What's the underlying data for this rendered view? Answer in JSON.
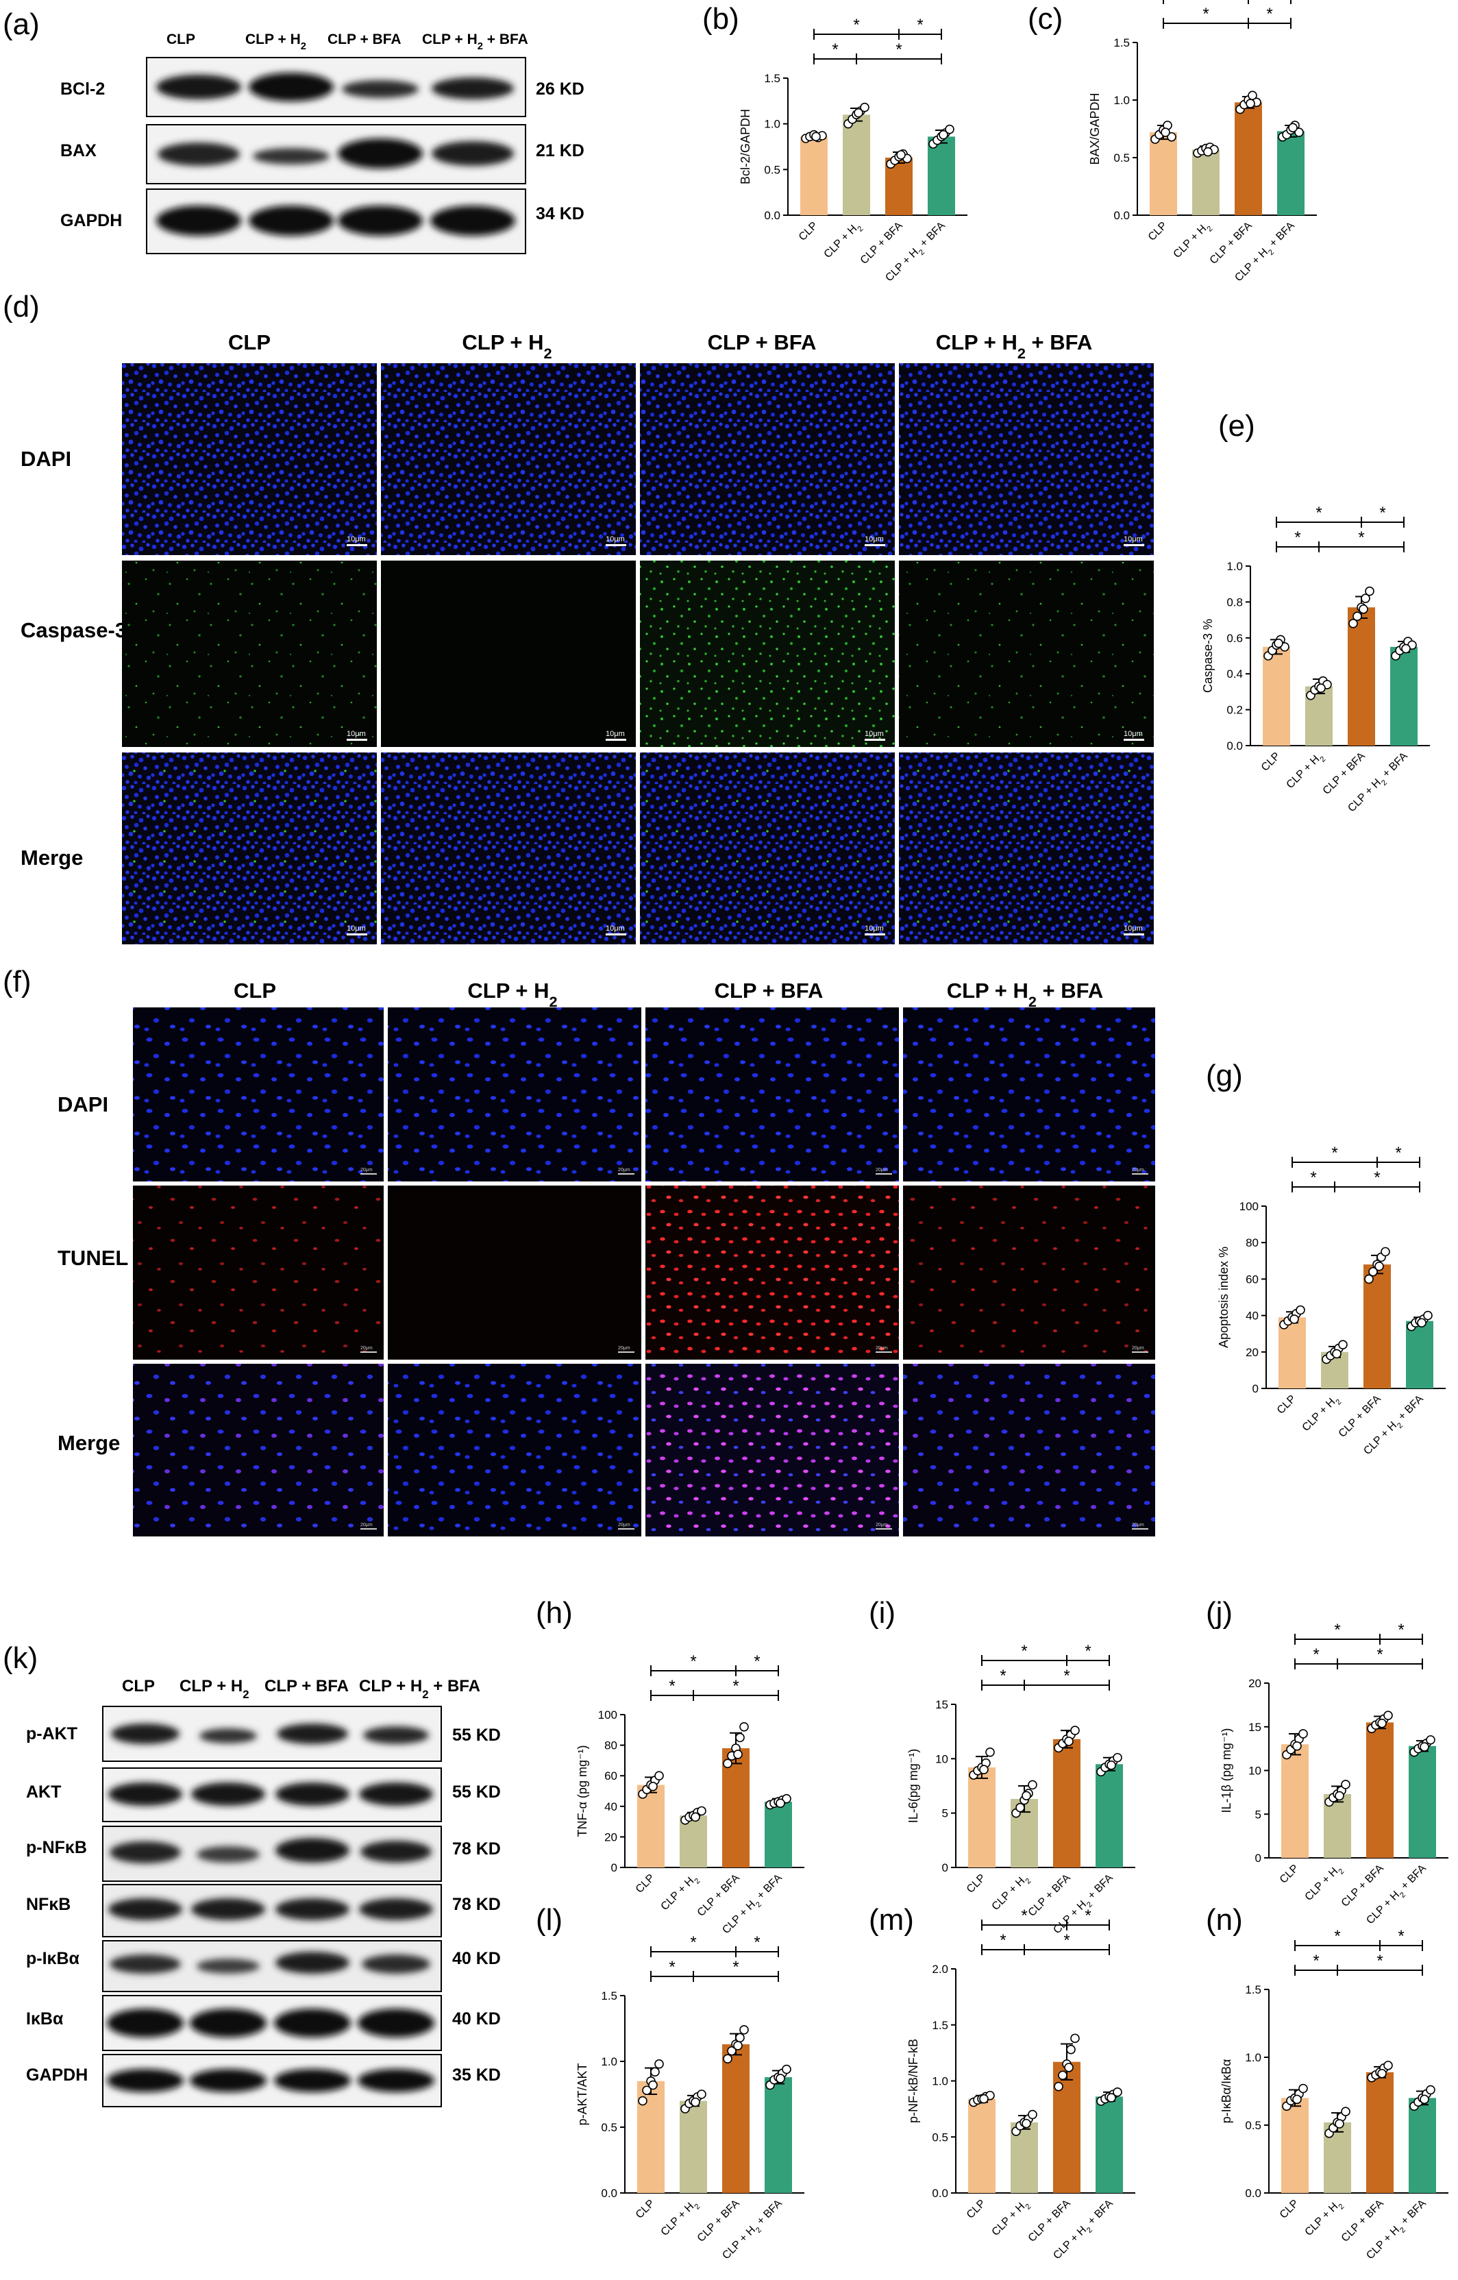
{
  "colors": {
    "bar_colors": [
      "#F4BE89",
      "#C3C295",
      "#C76A1E",
      "#33A079"
    ],
    "microscopy_dapi": "#1a2bd6",
    "microscopy_caspase": "#22c022",
    "microscopy_tunel": "#e02020",
    "microscopy_merge_tunel": "#c040e0",
    "blot_band": "#151515"
  },
  "groups": [
    "CLP",
    "CLP + H2",
    "CLP + BFA",
    "CLP + H2 + BFA"
  ],
  "panel_a": {
    "letter": "(a)",
    "lanes": [
      "CLP",
      "CLP + H2",
      "CLP + BFA",
      "CLP + H2 + BFA"
    ],
    "rows": [
      {
        "label": "BCl-2",
        "kd": "26 KD"
      },
      {
        "label": "BAX",
        "kd": "21 KD"
      },
      {
        "label": "GAPDH",
        "kd": "34 KD"
      }
    ]
  },
  "panel_d": {
    "letter": "(d)",
    "columns": [
      "CLP",
      "CLP + H2",
      "CLP + BFA",
      "CLP + H2 + BFA"
    ],
    "rows": [
      "DAPI",
      "Caspase-3",
      "Merge"
    ],
    "scale_bar": "10μm"
  },
  "panel_f": {
    "letter": "(f)",
    "columns": [
      "CLP",
      "CLP + H2",
      "CLP + BFA",
      "CLP + H2 + BFA"
    ],
    "rows": [
      "DAPI",
      "TUNEL",
      "Merge"
    ],
    "scale_bar": "20μm"
  },
  "panel_k": {
    "letter": "(k)",
    "lanes": [
      "CLP",
      "CLP + H2",
      "CLP + BFA",
      "CLP + H2 + BFA"
    ],
    "rows": [
      {
        "label": "p-AKT",
        "kd": "55 KD"
      },
      {
        "label": "AKT",
        "kd": "55 KD"
      },
      {
        "label": "p-NFκB",
        "kd": "78 KD"
      },
      {
        "label": "NFκB",
        "kd": "78 KD"
      },
      {
        "label": "p-IκBα",
        "kd": "40 KD"
      },
      {
        "label": "IκBα",
        "kd": "40 KD"
      },
      {
        "label": "GAPDH",
        "kd": "35 KD"
      }
    ]
  },
  "chart_data": [
    {
      "id": "b",
      "letter": "(b)",
      "type": "bar",
      "ylabel": "Bcl-2/GAPDH",
      "ylim": [
        0,
        1.5
      ],
      "yticks": [
        "0.0",
        "0.5",
        "1.0",
        "1.5"
      ],
      "categories": [
        "CLP",
        "CLP + H2",
        "CLP + BFA",
        "CLP + H2 + BFA"
      ],
      "values": [
        0.86,
        1.1,
        0.63,
        0.86
      ],
      "errors": [
        0.03,
        0.07,
        0.06,
        0.07
      ],
      "points": [
        [
          0.84,
          0.86,
          0.88,
          0.85,
          0.87,
          0.86
        ],
        [
          1.0,
          1.05,
          1.1,
          1.14,
          1.18,
          1.12
        ],
        [
          0.56,
          0.6,
          0.64,
          0.67,
          0.62,
          0.66
        ],
        [
          0.78,
          0.82,
          0.86,
          0.9,
          0.94,
          0.88
        ]
      ],
      "significance": [
        {
          "from": 0,
          "to": 2,
          "level": 2,
          "label": "*"
        },
        {
          "from": 2,
          "to": 3,
          "level": 2,
          "label": "*"
        },
        {
          "from": 0,
          "to": 1,
          "level": 1,
          "label": "*"
        },
        {
          "from": 1,
          "to": 3,
          "level": 1,
          "label": "*"
        }
      ]
    },
    {
      "id": "c",
      "letter": "(c)",
      "type": "bar",
      "ylabel": "BAX/GAPDH",
      "ylim": [
        0,
        1.5
      ],
      "yticks": [
        "0.0",
        "0.5",
        "1.0",
        "1.5"
      ],
      "categories": [
        "CLP",
        "CLP + H2",
        "CLP + BFA",
        "CLP + H2 + BFA"
      ],
      "values": [
        0.72,
        0.57,
        0.98,
        0.73
      ],
      "errors": [
        0.06,
        0.03,
        0.05,
        0.05
      ],
      "points": [
        [
          0.66,
          0.7,
          0.74,
          0.78,
          0.68,
          0.72
        ],
        [
          0.54,
          0.56,
          0.58,
          0.59,
          0.57,
          0.55
        ],
        [
          0.92,
          0.96,
          1.0,
          1.04,
          0.98,
          0.97
        ],
        [
          0.68,
          0.7,
          0.74,
          0.78,
          0.72,
          0.76
        ]
      ],
      "significance": [
        {
          "from": 0,
          "to": 2,
          "level": 2,
          "label": "*"
        },
        {
          "from": 2,
          "to": 3,
          "level": 2,
          "label": "*"
        },
        {
          "from": 0,
          "to": 2,
          "level": 1,
          "label": "*"
        },
        {
          "from": 2,
          "to": 3,
          "level": 1,
          "label": "*"
        }
      ]
    },
    {
      "id": "e",
      "letter": "(e)",
      "type": "bar",
      "ylabel": "Caspase-3 %",
      "ylim": [
        0,
        1.0
      ],
      "yticks": [
        "0.0",
        "0.2",
        "0.4",
        "0.6",
        "0.8",
        "1.0"
      ],
      "categories": [
        "CLP",
        "CLP + H2",
        "CLP + BFA",
        "CLP + H2 + BFA"
      ],
      "values": [
        0.55,
        0.33,
        0.77,
        0.55
      ],
      "errors": [
        0.04,
        0.04,
        0.06,
        0.03
      ],
      "points": [
        [
          0.5,
          0.53,
          0.56,
          0.59,
          0.55,
          0.57
        ],
        [
          0.28,
          0.31,
          0.33,
          0.36,
          0.34,
          0.32
        ],
        [
          0.68,
          0.72,
          0.77,
          0.82,
          0.86,
          0.76
        ],
        [
          0.5,
          0.53,
          0.55,
          0.58,
          0.56,
          0.54
        ]
      ],
      "significance": [
        {
          "from": 0,
          "to": 2,
          "level": 2,
          "label": "*"
        },
        {
          "from": 2,
          "to": 3,
          "level": 2,
          "label": "*"
        },
        {
          "from": 0,
          "to": 1,
          "level": 1,
          "label": "*"
        },
        {
          "from": 1,
          "to": 3,
          "level": 1,
          "label": "*"
        }
      ]
    },
    {
      "id": "g",
      "letter": "(g)",
      "type": "bar",
      "ylabel": "Apoptosis index %",
      "ylim": [
        0,
        100
      ],
      "yticks": [
        "0",
        "20",
        "40",
        "60",
        "80",
        "100"
      ],
      "categories": [
        "CLP",
        "CLP + H2",
        "CLP + BFA",
        "CLP + H2 + BFA"
      ],
      "values": [
        39,
        20,
        68,
        37
      ],
      "errors": [
        3,
        3,
        5,
        2
      ],
      "points": [
        [
          35,
          37,
          39,
          41,
          43,
          38
        ],
        [
          16,
          18,
          20,
          22,
          24,
          19
        ],
        [
          60,
          64,
          68,
          72,
          75,
          67
        ],
        [
          34,
          36,
          37,
          38,
          40,
          36
        ]
      ],
      "significance": [
        {
          "from": 0,
          "to": 2,
          "level": 2,
          "label": "*"
        },
        {
          "from": 2,
          "to": 3,
          "level": 2,
          "label": "*"
        },
        {
          "from": 0,
          "to": 1,
          "level": 1,
          "label": "*"
        },
        {
          "from": 1,
          "to": 3,
          "level": 1,
          "label": "*"
        }
      ]
    },
    {
      "id": "h",
      "letter": "(h)",
      "type": "bar",
      "ylabel": "TNF-α (pg mg⁻¹)",
      "ylim": [
        0,
        100
      ],
      "yticks": [
        "0",
        "20",
        "40",
        "60",
        "80",
        "100"
      ],
      "categories": [
        "CLP",
        "CLP + H2",
        "CLP + BFA",
        "CLP + H2 + BFA"
      ],
      "values": [
        54,
        34,
        78,
        43
      ],
      "errors": [
        5,
        2,
        10,
        2
      ],
      "points": [
        [
          48,
          51,
          54,
          57,
          60,
          53
        ],
        [
          31,
          33,
          34,
          36,
          37,
          33
        ],
        [
          68,
          73,
          78,
          85,
          92,
          74
        ],
        [
          41,
          42,
          43,
          44,
          45,
          42
        ]
      ],
      "significance": [
        {
          "from": 0,
          "to": 2,
          "level": 2,
          "label": "*"
        },
        {
          "from": 2,
          "to": 3,
          "level": 2,
          "label": "*"
        },
        {
          "from": 0,
          "to": 1,
          "level": 1,
          "label": "*"
        },
        {
          "from": 1,
          "to": 3,
          "level": 1,
          "label": "*"
        }
      ]
    },
    {
      "id": "i",
      "letter": "(i)",
      "type": "bar",
      "ylabel": "IL-6(pg mg⁻¹)",
      "ylim": [
        0,
        15
      ],
      "yticks": [
        "0",
        "5",
        "10",
        "15"
      ],
      "categories": [
        "CLP",
        "CLP + H2",
        "CLP + BFA",
        "CLP + H2 + BFA"
      ],
      "values": [
        9.2,
        6.3,
        11.8,
        9.5
      ],
      "errors": [
        1.0,
        1.2,
        0.8,
        0.6
      ],
      "points": [
        [
          8.5,
          8.9,
          9.2,
          9.6,
          10.6,
          9.0
        ],
        [
          5.0,
          5.5,
          6.2,
          6.8,
          7.6,
          6.6
        ],
        [
          11.0,
          11.4,
          11.8,
          12.2,
          12.6,
          11.6
        ],
        [
          8.8,
          9.2,
          9.5,
          9.8,
          10.1,
          9.4
        ]
      ],
      "significance": [
        {
          "from": 0,
          "to": 2,
          "level": 2,
          "label": "*"
        },
        {
          "from": 2,
          "to": 3,
          "level": 2,
          "label": "*"
        },
        {
          "from": 0,
          "to": 1,
          "level": 1,
          "label": "*"
        },
        {
          "from": 1,
          "to": 3,
          "level": 1,
          "label": "*"
        }
      ]
    },
    {
      "id": "j",
      "letter": "(j)",
      "type": "bar",
      "ylabel": "IL-1β (pg mg⁻¹)",
      "ylim": [
        0,
        20
      ],
      "yticks": [
        "0",
        "5",
        "10",
        "15",
        "20"
      ],
      "categories": [
        "CLP",
        "CLP + H2",
        "CLP + BFA",
        "CLP + H2 + BFA"
      ],
      "values": [
        13,
        7.3,
        15.5,
        12.8
      ],
      "errors": [
        1.2,
        0.9,
        0.7,
        0.6
      ],
      "points": [
        [
          11.8,
          12.4,
          13.0,
          13.6,
          14.2,
          12.8
        ],
        [
          6.4,
          6.9,
          7.3,
          7.7,
          8.4,
          7.1
        ],
        [
          14.8,
          15.2,
          15.5,
          15.9,
          16.3,
          15.4
        ],
        [
          12.1,
          12.5,
          12.8,
          13.1,
          13.5,
          12.7
        ]
      ],
      "significance": [
        {
          "from": 0,
          "to": 2,
          "level": 2,
          "label": "*"
        },
        {
          "from": 2,
          "to": 3,
          "level": 2,
          "label": "*"
        },
        {
          "from": 0,
          "to": 1,
          "level": 1,
          "label": "*"
        },
        {
          "from": 1,
          "to": 3,
          "level": 1,
          "label": "*"
        }
      ]
    },
    {
      "id": "l",
      "letter": "(l)",
      "type": "bar",
      "ylabel": "p-AKT/AKT",
      "ylim": [
        0,
        1.5
      ],
      "yticks": [
        "0.0",
        "0.5",
        "1.0",
        "1.5"
      ],
      "categories": [
        "CLP",
        "CLP + H2",
        "CLP + BFA",
        "CLP + H2 + BFA"
      ],
      "values": [
        0.85,
        0.7,
        1.13,
        0.88
      ],
      "errors": [
        0.1,
        0.04,
        0.08,
        0.05
      ],
      "points": [
        [
          0.7,
          0.78,
          0.85,
          0.92,
          0.98,
          0.82
        ],
        [
          0.64,
          0.68,
          0.7,
          0.73,
          0.75,
          0.69
        ],
        [
          1.02,
          1.08,
          1.13,
          1.18,
          1.24,
          1.12
        ],
        [
          0.82,
          0.86,
          0.88,
          0.91,
          0.94,
          0.87
        ]
      ],
      "significance": [
        {
          "from": 0,
          "to": 2,
          "level": 2,
          "label": "*"
        },
        {
          "from": 2,
          "to": 3,
          "level": 2,
          "label": "*"
        },
        {
          "from": 0,
          "to": 1,
          "level": 1,
          "label": "*"
        },
        {
          "from": 1,
          "to": 3,
          "level": 1,
          "label": "*"
        }
      ]
    },
    {
      "id": "m",
      "letter": "(m)",
      "type": "bar",
      "ylabel": "p-NF-kB/NF-kB",
      "ylim": [
        0,
        2.0
      ],
      "yticks": [
        "0.0",
        "0.5",
        "1.0",
        "1.5",
        "2.0"
      ],
      "categories": [
        "CLP",
        "CLP + H2",
        "CLP + BFA",
        "CLP + H2 + BFA"
      ],
      "values": [
        0.84,
        0.63,
        1.17,
        0.86
      ],
      "errors": [
        0.03,
        0.06,
        0.16,
        0.04
      ],
      "points": [
        [
          0.81,
          0.83,
          0.84,
          0.86,
          0.87,
          0.84
        ],
        [
          0.55,
          0.6,
          0.63,
          0.66,
          0.7,
          0.62
        ],
        [
          0.95,
          1.05,
          1.15,
          1.28,
          1.38,
          1.12
        ],
        [
          0.82,
          0.84,
          0.86,
          0.88,
          0.9,
          0.85
        ]
      ],
      "significance": [
        {
          "from": 0,
          "to": 2,
          "level": 2,
          "label": "*"
        },
        {
          "from": 2,
          "to": 3,
          "level": 2,
          "label": "*"
        },
        {
          "from": 0,
          "to": 1,
          "level": 1,
          "label": "*"
        },
        {
          "from": 1,
          "to": 3,
          "level": 1,
          "label": "*"
        }
      ]
    },
    {
      "id": "n",
      "letter": "(n)",
      "type": "bar",
      "ylabel": "p-IκBα/IκBα",
      "ylim": [
        0,
        1.5
      ],
      "yticks": [
        "0.0",
        "0.5",
        "1.0",
        "1.5"
      ],
      "categories": [
        "CLP",
        "CLP + H2",
        "CLP + BFA",
        "CLP + H2 + BFA"
      ],
      "values": [
        0.7,
        0.52,
        0.89,
        0.7
      ],
      "errors": [
        0.06,
        0.07,
        0.04,
        0.05
      ],
      "points": [
        [
          0.64,
          0.68,
          0.7,
          0.73,
          0.77,
          0.69
        ],
        [
          0.44,
          0.48,
          0.52,
          0.56,
          0.6,
          0.51
        ],
        [
          0.85,
          0.87,
          0.89,
          0.92,
          0.94,
          0.88
        ],
        [
          0.64,
          0.67,
          0.7,
          0.73,
          0.76,
          0.69
        ]
      ],
      "significance": [
        {
          "from": 0,
          "to": 2,
          "level": 2,
          "label": "*"
        },
        {
          "from": 2,
          "to": 3,
          "level": 2,
          "label": "*"
        },
        {
          "from": 0,
          "to": 1,
          "level": 1,
          "label": "*"
        },
        {
          "from": 1,
          "to": 3,
          "level": 1,
          "label": "*"
        }
      ]
    }
  ]
}
